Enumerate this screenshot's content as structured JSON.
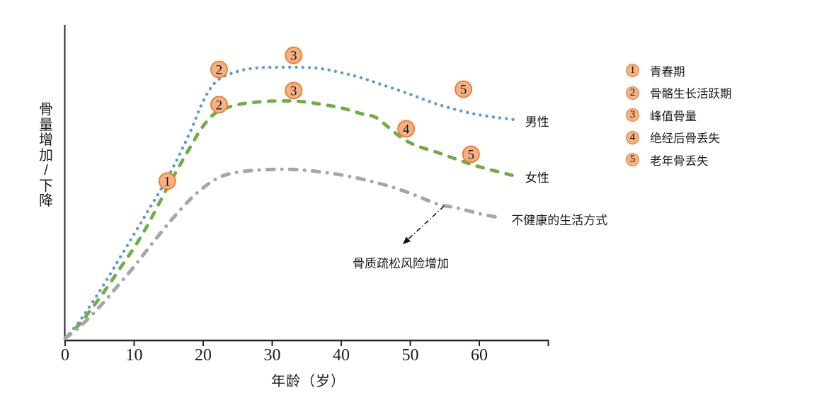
{
  "chart_data": {
    "type": "line",
    "title": "",
    "xlabel": "年龄（岁）",
    "ylabel": "骨量增加/下降",
    "x_ticks": [
      0,
      10,
      20,
      30,
      40,
      50,
      60
    ],
    "x_axis_end": 70,
    "y_axis_note": "qualitative axis; series values are relative bone mass 0-1",
    "series": [
      {
        "key": "male",
        "name": "男性",
        "color": "#5B9BD5",
        "line_style": "dotted",
        "points": [
          [
            0,
            0
          ],
          [
            2,
            0.06
          ],
          [
            4,
            0.135
          ],
          [
            6,
            0.215
          ],
          [
            8,
            0.3
          ],
          [
            10,
            0.385
          ],
          [
            12,
            0.47
          ],
          [
            15,
            0.6
          ],
          [
            18,
            0.755
          ],
          [
            20,
            0.875
          ],
          [
            22,
            0.95
          ],
          [
            25,
            0.985
          ],
          [
            28,
            0.998
          ],
          [
            31,
            1.0
          ],
          [
            34,
            1.0
          ],
          [
            37,
            0.995
          ],
          [
            40,
            0.98
          ],
          [
            43,
            0.96
          ],
          [
            46,
            0.935
          ],
          [
            50,
            0.9
          ],
          [
            54,
            0.863
          ],
          [
            58,
            0.835
          ],
          [
            61,
            0.82
          ],
          [
            65,
            0.807
          ]
        ]
      },
      {
        "key": "female",
        "name": "女性",
        "color": "#70AD47",
        "line_style": "dashed",
        "points": [
          [
            0,
            0
          ],
          [
            2,
            0.05
          ],
          [
            4,
            0.115
          ],
          [
            6,
            0.185
          ],
          [
            8,
            0.26
          ],
          [
            10,
            0.335
          ],
          [
            12,
            0.42
          ],
          [
            15,
            0.565
          ],
          [
            18,
            0.7
          ],
          [
            20,
            0.783
          ],
          [
            22,
            0.835
          ],
          [
            25,
            0.862
          ],
          [
            28,
            0.872
          ],
          [
            31,
            0.876
          ],
          [
            34,
            0.874
          ],
          [
            37,
            0.864
          ],
          [
            40,
            0.85
          ],
          [
            43,
            0.828
          ],
          [
            45,
            0.815
          ],
          [
            47,
            0.775
          ],
          [
            49,
            0.735
          ],
          [
            51,
            0.71
          ],
          [
            54,
            0.685
          ],
          [
            57,
            0.658
          ],
          [
            60,
            0.633
          ],
          [
            65,
            0.6
          ]
        ]
      },
      {
        "key": "unhealthy",
        "name": "不健康的生活方式",
        "color": "#A6A6A6",
        "line_style": "dash-dot",
        "points": [
          [
            0,
            0
          ],
          [
            2,
            0.04
          ],
          [
            4,
            0.09
          ],
          [
            6,
            0.145
          ],
          [
            8,
            0.205
          ],
          [
            10,
            0.265
          ],
          [
            12,
            0.33
          ],
          [
            15,
            0.425
          ],
          [
            18,
            0.51
          ],
          [
            20,
            0.555
          ],
          [
            22,
            0.59
          ],
          [
            24,
            0.608
          ],
          [
            27,
            0.619
          ],
          [
            30,
            0.623
          ],
          [
            33,
            0.623
          ],
          [
            36,
            0.617
          ],
          [
            39,
            0.607
          ],
          [
            42,
            0.593
          ],
          [
            45,
            0.575
          ],
          [
            48,
            0.553
          ],
          [
            51,
            0.525
          ],
          [
            54,
            0.495
          ],
          [
            57,
            0.48
          ],
          [
            60,
            0.46
          ],
          [
            63,
            0.445
          ]
        ]
      }
    ],
    "stage_markers": [
      {
        "num": "1",
        "age": 14.8,
        "value": 0.58
      },
      {
        "num": "2",
        "age": 22.3,
        "value": 0.992
      },
      {
        "num": "2",
        "age": 22.3,
        "value": 0.862
      },
      {
        "num": "3",
        "age": 33.1,
        "value": 1.044
      },
      {
        "num": "3",
        "age": 33.1,
        "value": 0.914
      },
      {
        "num": "4",
        "age": 49.4,
        "value": 0.773
      },
      {
        "num": "5",
        "age": 57.7,
        "value": 0.919
      },
      {
        "num": "5",
        "age": 58.8,
        "value": 0.679
      }
    ],
    "annotation": {
      "text": "骨质疏松风险增加",
      "arrow": {
        "from": {
          "age": 54.9,
          "value": 0.488
        },
        "to": {
          "age": 48.9,
          "value": 0.347
        }
      }
    }
  },
  "legend": {
    "items": [
      {
        "num": "1",
        "label": "青春期"
      },
      {
        "num": "2",
        "label": "骨骼生长活跃期"
      },
      {
        "num": "3",
        "label": "峰值骨量"
      },
      {
        "num": "4",
        "label": "绝经后骨丢失"
      },
      {
        "num": "5",
        "label": "老年骨丢失"
      }
    ]
  },
  "colors": {
    "male": "#5B9BD5",
    "female": "#70AD47",
    "unhealthy": "#A6A6A6",
    "marker_fill": "#F4B183",
    "marker_border": "#ED7D31",
    "axis": "#262626",
    "text": "#1A1A1A"
  }
}
